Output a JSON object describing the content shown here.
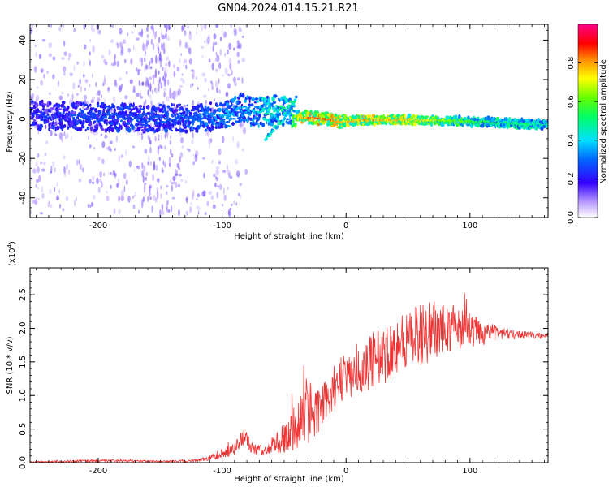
{
  "figure_title": "GN04.2024.014.15.21.R21",
  "chart_data": [
    {
      "type": "heatmap",
      "title": "",
      "xlabel": "Height of straight line (km)",
      "ylabel": "Frequency (Hz)",
      "xlim": [
        -255,
        163
      ],
      "ylim": [
        -50,
        48
      ],
      "xticks": [
        "-200",
        "-100",
        "0",
        "100"
      ],
      "xtick_values": [
        -200,
        -100,
        0,
        100
      ],
      "yticks": [
        "40",
        "20",
        "0",
        "-20",
        "-40"
      ],
      "ytick_values": [
        40,
        20,
        0,
        -20,
        -40
      ],
      "colorbar": {
        "label": "Normalized spectral amplitude",
        "range": [
          0,
          1
        ],
        "ticks": [
          "0.0",
          "0.2",
          "0.4",
          "0.6",
          "0.8"
        ],
        "tick_values": [
          0,
          0.2,
          0.4,
          0.6,
          0.8
        ],
        "colormap": "rainbow (white-violet-blue-cyan-green-yellow-red-magenta)"
      },
      "ridge": {
        "x": [
          -255,
          -200,
          -150,
          -110,
          -95,
          -85,
          -75,
          -65,
          -55,
          -45,
          -40,
          -35,
          -25,
          -15,
          -5,
          0,
          20,
          50,
          80,
          110,
          140,
          163
        ],
        "y": [
          2,
          1,
          0,
          1,
          3,
          6,
          3,
          4,
          5,
          3,
          2,
          1,
          0.5,
          0,
          -1.5,
          -1,
          -0.5,
          -0.5,
          -0.8,
          -1.5,
          -2.5,
          -3
        ],
        "amplitude": [
          0.25,
          0.3,
          0.3,
          0.35,
          0.4,
          0.4,
          0.4,
          0.5,
          0.5,
          0.55,
          0.75,
          0.85,
          0.9,
          0.9,
          0.85,
          0.8,
          0.85,
          0.8,
          0.7,
          0.6,
          0.55,
          0.5
        ]
      },
      "branch": {
        "x": [
          -40,
          -45,
          -50,
          -55,
          -60,
          -65
        ],
        "y": [
          12,
          5,
          0,
          -3,
          -6,
          -11
        ]
      },
      "scatter_band": {
        "x_start": -255,
        "x_end": -80,
        "frequency_spread": 48
      },
      "grid": false
    },
    {
      "type": "line",
      "title": "",
      "xlabel": "Height of straight line (km)",
      "ylabel": "SNR (10 * v/v)",
      "y_multiplier": "(x10^4)",
      "y_multiplier_base": "(x10",
      "y_multiplier_exp": "4",
      "y_multiplier_close": ")",
      "xlim": [
        -255,
        163
      ],
      "ylim": [
        0,
        2.9
      ],
      "xticks": [
        "-200",
        "-100",
        "0",
        "100"
      ],
      "xtick_values": [
        -200,
        -100,
        0,
        100
      ],
      "yticks": [
        "0.0",
        "0.5",
        "1.0",
        "1.5",
        "2.0",
        "2.5"
      ],
      "ytick_values": [
        0,
        0.5,
        1.0,
        1.5,
        2.0,
        2.5
      ],
      "color": "#ee3333",
      "envelope": {
        "x": [
          -255,
          -200,
          -150,
          -130,
          -120,
          -110,
          -100,
          -90,
          -82,
          -75,
          -65,
          -55,
          -45,
          -40,
          -35,
          -30,
          -25,
          -20,
          -15,
          -10,
          -5,
          0,
          10,
          20,
          30,
          40,
          50,
          60,
          70,
          80,
          90,
          100,
          110,
          120,
          130,
          140,
          150,
          163
        ],
        "mean": [
          0.01,
          0.03,
          0.02,
          0.02,
          0.03,
          0.07,
          0.14,
          0.2,
          0.4,
          0.2,
          0.18,
          0.3,
          0.45,
          0.55,
          0.65,
          0.75,
          0.7,
          0.85,
          1.0,
          1.1,
          1.2,
          1.3,
          1.35,
          1.5,
          1.6,
          1.75,
          1.85,
          1.9,
          1.95,
          2.0,
          2.0,
          1.95,
          1.95,
          1.93,
          1.92,
          1.9,
          1.9,
          1.88
        ],
        "noise": [
          0.01,
          0.02,
          0.01,
          0.02,
          0.02,
          0.04,
          0.08,
          0.1,
          0.15,
          0.08,
          0.07,
          0.2,
          0.3,
          0.35,
          0.4,
          0.5,
          0.4,
          0.3,
          0.35,
          0.35,
          0.35,
          0.35,
          0.35,
          0.4,
          0.45,
          0.45,
          0.45,
          0.45,
          0.45,
          0.4,
          0.35,
          0.28,
          0.2,
          0.12,
          0.08,
          0.06,
          0.05,
          0.04
        ]
      },
      "grid": false
    }
  ]
}
